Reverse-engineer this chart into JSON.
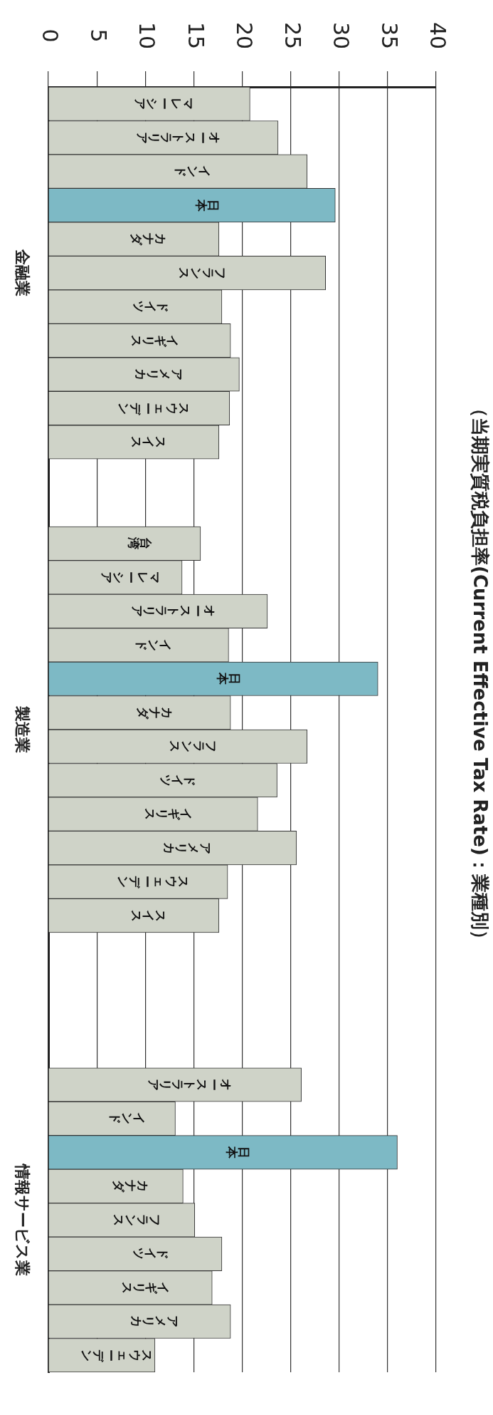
{
  "chart_data": {
    "type": "bar",
    "orientation": "horizontal",
    "title": "（当期実質税負担率(Current Effective Tax Rate)：業種別）",
    "annotations": [
      "金融業",
      "製造業",
      "情報サービス業"
    ],
    "categories": [
      "マレーシア",
      "オーストラリア",
      "インド",
      "日本",
      "カナダ",
      "フランス",
      "ドイツ",
      "イギリス",
      "アメリカ",
      "スウェーデン",
      "スイス",
      null,
      null,
      "台湾",
      "マレーシア",
      "オーストラリア",
      "インド",
      "日本",
      "カナダ",
      "フランス",
      "ドイツ",
      "イギリス",
      "アメリカ",
      "スウェーデン",
      "スイス",
      null,
      null,
      null,
      null,
      "オーストラリア",
      "インド",
      "日本",
      "カナダ",
      "フランス",
      "ドイツ",
      "イギリス",
      "アメリカ",
      "スウェーデン"
    ],
    "values": [
      20.8,
      23.7,
      26.7,
      29.6,
      17.6,
      28.6,
      17.9,
      18.8,
      19.7,
      18.7,
      17.6,
      null,
      null,
      15.7,
      13.8,
      22.6,
      18.6,
      34.0,
      18.8,
      26.7,
      23.6,
      21.6,
      25.6,
      18.5,
      17.6,
      null,
      null,
      null,
      null,
      26.1,
      13.1,
      36.0,
      13.9,
      15.1,
      17.9,
      16.9,
      18.8,
      11.0
    ],
    "colors": [
      "#cfd3c8",
      "#cfd3c8",
      "#cfd3c8",
      "#7db9c5",
      "#cfd3c8",
      "#cfd3c8",
      "#cfd3c8",
      "#cfd3c8",
      "#cfd3c8",
      "#cfd3c8",
      "#cfd3c8",
      null,
      null,
      "#cfd3c8",
      "#cfd3c8",
      "#cfd3c8",
      "#cfd3c8",
      "#7db9c5",
      "#cfd3c8",
      "#cfd3c8",
      "#cfd3c8",
      "#cfd3c8",
      "#cfd3c8",
      "#cfd3c8",
      "#cfd3c8",
      null,
      null,
      null,
      null,
      "#cfd3c8",
      "#cfd3c8",
      "#7db9c5",
      "#cfd3c8",
      "#cfd3c8",
      "#cfd3c8",
      "#cfd3c8",
      "#cfd3c8",
      "#cfd3c8"
    ],
    "xlim": [
      0,
      40
    ],
    "xticks": [
      0,
      5,
      10,
      15,
      20,
      25,
      30,
      35,
      40
    ],
    "grid": "x",
    "legend": false
  }
}
